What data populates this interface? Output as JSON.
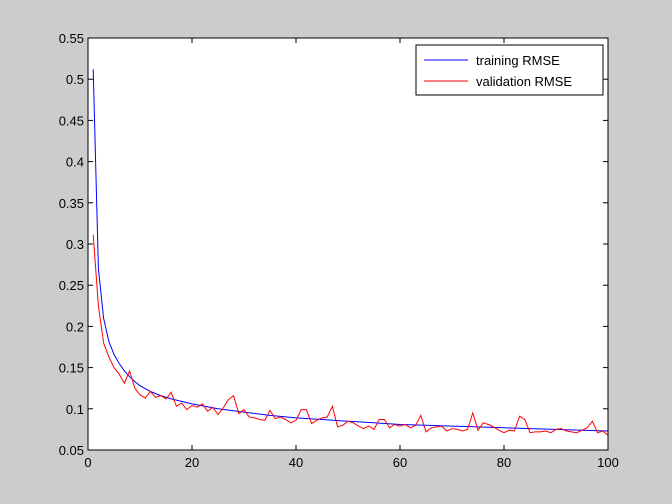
{
  "chart_data": {
    "type": "line",
    "title": "",
    "xlabel": "",
    "ylabel": "",
    "xlim": [
      0,
      100
    ],
    "ylim": [
      0.05,
      0.55
    ],
    "x_ticks": [
      0,
      20,
      40,
      60,
      80,
      100
    ],
    "y_ticks": [
      0.05,
      0.1,
      0.15,
      0.2,
      0.25,
      0.3,
      0.35,
      0.4,
      0.45,
      0.5,
      0.55
    ],
    "x_tick_labels": [
      "0",
      "20",
      "40",
      "60",
      "80",
      "100"
    ],
    "y_tick_labels": [
      "0.05",
      "0.1",
      "0.15",
      "0.2",
      "0.25",
      "0.3",
      "0.35",
      "0.4",
      "0.45",
      "0.5",
      "0.55"
    ],
    "grid": false,
    "legend_position": "top-right",
    "series": [
      {
        "name": "training RMSE",
        "color": "#0000ff",
        "x": [
          1,
          2,
          3,
          4,
          5,
          6,
          7,
          8,
          9,
          10,
          12,
          14,
          16,
          18,
          20,
          25,
          30,
          35,
          40,
          45,
          50,
          55,
          60,
          65,
          70,
          75,
          80,
          85,
          90,
          95,
          100
        ],
        "values": [
          0.512,
          0.27,
          0.21,
          0.182,
          0.166,
          0.155,
          0.146,
          0.139,
          0.133,
          0.128,
          0.121,
          0.116,
          0.112,
          0.109,
          0.106,
          0.1,
          0.096,
          0.092,
          0.089,
          0.087,
          0.085,
          0.083,
          0.081,
          0.08,
          0.079,
          0.078,
          0.077,
          0.076,
          0.075,
          0.074,
          0.073
        ]
      },
      {
        "name": "validation RMSE",
        "color": "#ff0000",
        "x": [
          1,
          2,
          3,
          4,
          5,
          6,
          7,
          8,
          9,
          10,
          11,
          12,
          13,
          14,
          15,
          16,
          17,
          18,
          19,
          20,
          21,
          22,
          23,
          24,
          25,
          26,
          27,
          28,
          29,
          30,
          31,
          32,
          33,
          34,
          35,
          36,
          37,
          38,
          39,
          40,
          41,
          42,
          43,
          44,
          45,
          46,
          47,
          48,
          49,
          50,
          51,
          52,
          53,
          54,
          55,
          56,
          57,
          58,
          59,
          60,
          61,
          62,
          63,
          64,
          65,
          66,
          67,
          68,
          69,
          70,
          71,
          72,
          73,
          74,
          75,
          76,
          77,
          78,
          79,
          80,
          81,
          82,
          83,
          84,
          85,
          86,
          87,
          88,
          89,
          90,
          91,
          92,
          93,
          94,
          95,
          96,
          97,
          98,
          99,
          100
        ],
        "values": [
          0.311,
          0.225,
          0.18,
          0.163,
          0.15,
          0.142,
          0.131,
          0.146,
          0.125,
          0.117,
          0.113,
          0.121,
          0.114,
          0.116,
          0.112,
          0.12,
          0.103,
          0.107,
          0.099,
          0.104,
          0.102,
          0.106,
          0.097,
          0.102,
          0.093,
          0.101,
          0.111,
          0.116,
          0.094,
          0.099,
          0.09,
          0.089,
          0.087,
          0.086,
          0.098,
          0.088,
          0.09,
          0.087,
          0.083,
          0.086,
          0.099,
          0.099,
          0.082,
          0.086,
          0.089,
          0.09,
          0.103,
          0.078,
          0.08,
          0.085,
          0.083,
          0.079,
          0.076,
          0.079,
          0.075,
          0.087,
          0.087,
          0.077,
          0.081,
          0.079,
          0.081,
          0.077,
          0.08,
          0.092,
          0.072,
          0.077,
          0.078,
          0.079,
          0.073,
          0.076,
          0.075,
          0.073,
          0.075,
          0.095,
          0.074,
          0.083,
          0.081,
          0.078,
          0.074,
          0.071,
          0.074,
          0.073,
          0.091,
          0.087,
          0.071,
          0.072,
          0.072,
          0.073,
          0.071,
          0.075,
          0.076,
          0.073,
          0.072,
          0.071,
          0.074,
          0.077,
          0.085,
          0.071,
          0.073,
          0.068
        ]
      }
    ]
  }
}
